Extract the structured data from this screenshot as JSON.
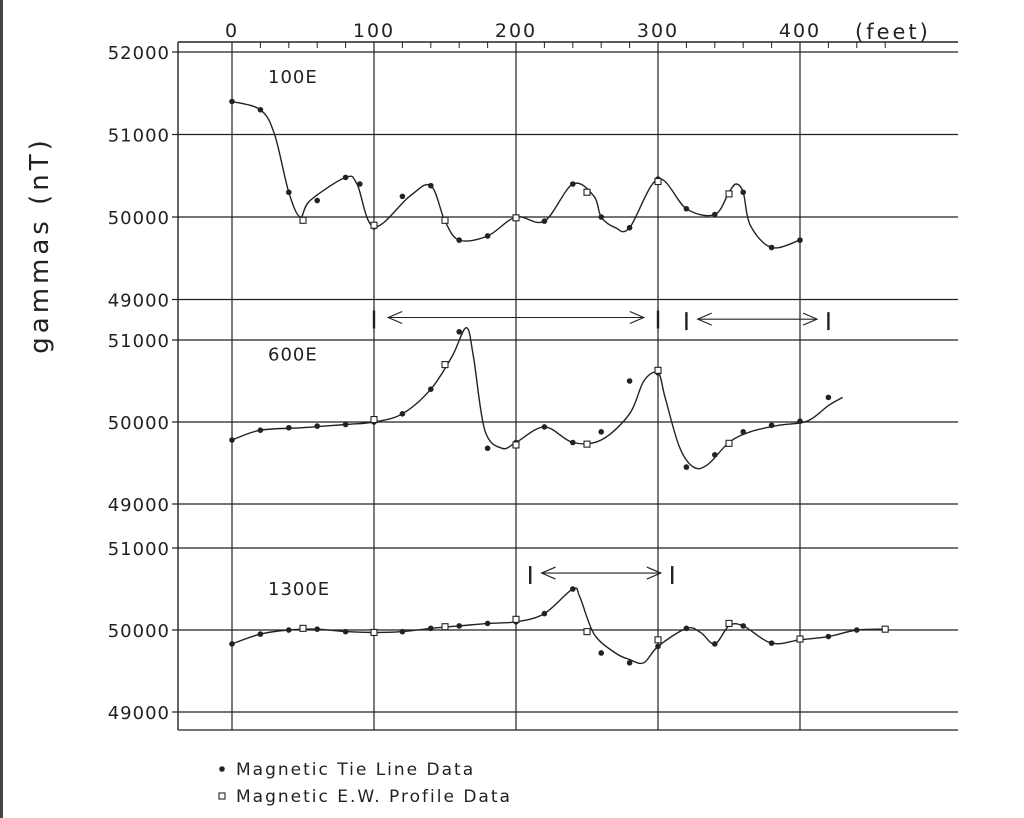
{
  "chart_data": {
    "type": "line",
    "x_unit_label": "(feet)",
    "ylabel": "gammas (nT)",
    "x_ticks": [
      0,
      100,
      200,
      300,
      400
    ],
    "legend": [
      {
        "marker": "dot",
        "label": "Magnetic Tie Line Data"
      },
      {
        "marker": "square",
        "label": "Magnetic E.W. Profile Data"
      }
    ],
    "legend_position": "bottom-left",
    "grid": true,
    "colors": {
      "ink": "#222222",
      "background": "#ffffff"
    },
    "panels": [
      {
        "name": "100E",
        "y_ticks": [
          52000,
          51000,
          50000,
          49000
        ],
        "ylim": [
          49000,
          52000
        ],
        "curve": [
          [
            0,
            51400
          ],
          [
            20,
            51300
          ],
          [
            30,
            51000
          ],
          [
            40,
            50300
          ],
          [
            48,
            50000
          ],
          [
            55,
            50200
          ],
          [
            80,
            50480
          ],
          [
            88,
            50400
          ],
          [
            100,
            49880
          ],
          [
            125,
            50250
          ],
          [
            140,
            50380
          ],
          [
            150,
            49950
          ],
          [
            160,
            49720
          ],
          [
            180,
            49770
          ],
          [
            200,
            50000
          ],
          [
            220,
            49950
          ],
          [
            240,
            50400
          ],
          [
            255,
            50250
          ],
          [
            260,
            50000
          ],
          [
            270,
            49870
          ],
          [
            280,
            49870
          ],
          [
            300,
            50460
          ],
          [
            320,
            50100
          ],
          [
            340,
            50030
          ],
          [
            350,
            50300
          ],
          [
            355,
            50400
          ],
          [
            360,
            50300
          ],
          [
            365,
            49900
          ],
          [
            380,
            49630
          ],
          [
            400,
            49720
          ]
        ],
        "tie_points": [
          [
            0,
            51400
          ],
          [
            20,
            51300
          ],
          [
            40,
            50300
          ],
          [
            60,
            50200
          ],
          [
            80,
            50480
          ],
          [
            90,
            50400
          ],
          [
            100,
            49880
          ],
          [
            120,
            50250
          ],
          [
            140,
            50380
          ],
          [
            160,
            49720
          ],
          [
            180,
            49770
          ],
          [
            200,
            50000
          ],
          [
            220,
            49950
          ],
          [
            240,
            50400
          ],
          [
            260,
            50000
          ],
          [
            280,
            49870
          ],
          [
            300,
            50460
          ],
          [
            320,
            50100
          ],
          [
            340,
            50030
          ],
          [
            360,
            50300
          ],
          [
            380,
            49630
          ],
          [
            400,
            49720
          ]
        ],
        "profile_points": [
          [
            50,
            49960
          ],
          [
            100,
            49900
          ],
          [
            150,
            49960
          ],
          [
            200,
            49990
          ],
          [
            250,
            50300
          ],
          [
            300,
            50430
          ],
          [
            350,
            50280
          ]
        ],
        "markers": []
      },
      {
        "name": "600E",
        "y_ticks": [
          51000,
          50000,
          49000
        ],
        "ylim": [
          49000,
          51000
        ],
        "curve": [
          [
            0,
            49780
          ],
          [
            20,
            49900
          ],
          [
            50,
            49930
          ],
          [
            80,
            49970
          ],
          [
            100,
            50000
          ],
          [
            120,
            50100
          ],
          [
            140,
            50400
          ],
          [
            155,
            50800
          ],
          [
            165,
            51150
          ],
          [
            170,
            50800
          ],
          [
            178,
            49900
          ],
          [
            190,
            49680
          ],
          [
            200,
            49750
          ],
          [
            220,
            49940
          ],
          [
            240,
            49750
          ],
          [
            260,
            49780
          ],
          [
            280,
            50100
          ],
          [
            290,
            50500
          ],
          [
            300,
            50600
          ],
          [
            305,
            50300
          ],
          [
            315,
            49700
          ],
          [
            325,
            49450
          ],
          [
            335,
            49480
          ],
          [
            350,
            49750
          ],
          [
            365,
            49880
          ],
          [
            385,
            49960
          ],
          [
            405,
            50010
          ],
          [
            420,
            50200
          ],
          [
            430,
            50300
          ]
        ],
        "tie_points": [
          [
            0,
            49780
          ],
          [
            20,
            49900
          ],
          [
            40,
            49930
          ],
          [
            60,
            49950
          ],
          [
            80,
            49970
          ],
          [
            100,
            50000
          ],
          [
            120,
            50100
          ],
          [
            140,
            50400
          ],
          [
            160,
            51100
          ],
          [
            180,
            49680
          ],
          [
            200,
            49750
          ],
          [
            220,
            49940
          ],
          [
            240,
            49750
          ],
          [
            260,
            49880
          ],
          [
            280,
            50500
          ],
          [
            300,
            50600
          ],
          [
            320,
            49450
          ],
          [
            340,
            49600
          ],
          [
            360,
            49880
          ],
          [
            380,
            49960
          ],
          [
            400,
            50010
          ],
          [
            420,
            50300
          ]
        ],
        "profile_points": [
          [
            100,
            50030
          ],
          [
            150,
            50700
          ],
          [
            200,
            49720
          ],
          [
            250,
            49730
          ],
          [
            300,
            50630
          ],
          [
            350,
            49740
          ]
        ],
        "markers": [
          {
            "ticks": [
              100,
              300
            ],
            "arrow_start": 110,
            "arrow_end": 290,
            "value": 51250
          },
          {
            "ticks": [
              320,
              420
            ],
            "arrow_start": 328,
            "arrow_end": 412,
            "value": 51230
          }
        ]
      },
      {
        "name": "1300E",
        "y_ticks": [
          51000,
          50000,
          49000
        ],
        "ylim": [
          49000,
          51000
        ],
        "curve": [
          [
            0,
            49830
          ],
          [
            20,
            49950
          ],
          [
            40,
            50000
          ],
          [
            60,
            50010
          ],
          [
            80,
            49980
          ],
          [
            100,
            49970
          ],
          [
            120,
            49980
          ],
          [
            140,
            50020
          ],
          [
            160,
            50050
          ],
          [
            180,
            50080
          ],
          [
            200,
            50100
          ],
          [
            220,
            50200
          ],
          [
            240,
            50500
          ],
          [
            245,
            50400
          ],
          [
            255,
            49950
          ],
          [
            270,
            49720
          ],
          [
            280,
            49640
          ],
          [
            290,
            49600
          ],
          [
            300,
            49800
          ],
          [
            320,
            50020
          ],
          [
            330,
            49970
          ],
          [
            340,
            49830
          ],
          [
            350,
            50050
          ],
          [
            360,
            50050
          ],
          [
            380,
            49840
          ],
          [
            400,
            49880
          ],
          [
            420,
            49920
          ],
          [
            440,
            50000
          ],
          [
            460,
            50010
          ]
        ],
        "tie_points": [
          [
            0,
            49830
          ],
          [
            20,
            49950
          ],
          [
            40,
            50000
          ],
          [
            60,
            50010
          ],
          [
            80,
            49980
          ],
          [
            120,
            49980
          ],
          [
            140,
            50020
          ],
          [
            160,
            50050
          ],
          [
            180,
            50080
          ],
          [
            200,
            50100
          ],
          [
            220,
            50200
          ],
          [
            240,
            50500
          ],
          [
            260,
            49720
          ],
          [
            280,
            49600
          ],
          [
            300,
            49800
          ],
          [
            320,
            50020
          ],
          [
            340,
            49830
          ],
          [
            360,
            50050
          ],
          [
            380,
            49840
          ],
          [
            420,
            49920
          ],
          [
            440,
            50000
          ],
          [
            460,
            50010
          ]
        ],
        "profile_points": [
          [
            50,
            50020
          ],
          [
            100,
            49970
          ],
          [
            150,
            50040
          ],
          [
            200,
            50130
          ],
          [
            250,
            49980
          ],
          [
            300,
            49880
          ],
          [
            350,
            50080
          ],
          [
            400,
            49890
          ],
          [
            460,
            50010
          ]
        ],
        "markers": [
          {
            "ticks": [
              210,
              310
            ],
            "arrow_start": 218,
            "arrow_end": 302,
            "value": 50670
          }
        ]
      }
    ]
  }
}
